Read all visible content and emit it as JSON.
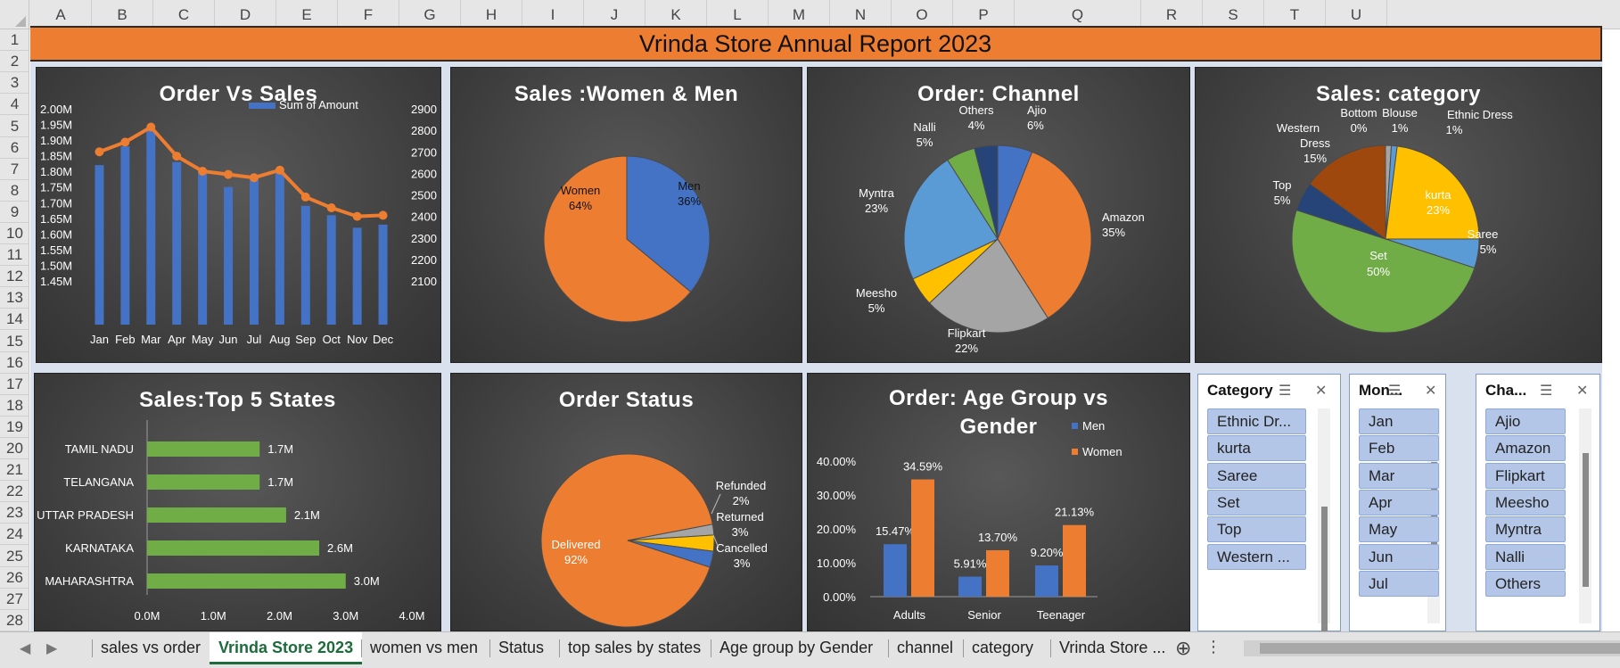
{
  "columns": [
    "A",
    "B",
    "C",
    "D",
    "E",
    "F",
    "G",
    "H",
    "I",
    "J",
    "K",
    "L",
    "M",
    "N",
    "O",
    "P",
    "Q",
    "R",
    "S",
    "T",
    "U"
  ],
  "rows": [
    "1",
    "2",
    "3",
    "4",
    "5",
    "6",
    "7",
    "8",
    "9",
    "10",
    "11",
    "12",
    "13",
    "14",
    "15",
    "16",
    "17",
    "18",
    "19",
    "20",
    "21",
    "22",
    "23",
    "24",
    "25",
    "26",
    "27",
    "28"
  ],
  "banner_title": "Vrinda Store Annual Report 2023",
  "colors": {
    "orange": "#ed7d31",
    "blue": "#4472c4",
    "green": "#70ad47",
    "gray": "#a5a5a5",
    "yellow": "#ffc000",
    "lightblue": "#5b9bd5",
    "navy": "#264478",
    "brown": "#9e480e"
  },
  "charts": {
    "order_vs_sales": {
      "title": "Order Vs Sales",
      "legend": "Sum of Amount",
      "left_ticks": [
        "2.00M",
        "1.95M",
        "1.90M",
        "1.85M",
        "1.80M",
        "1.75M",
        "1.70M",
        "1.65M",
        "1.60M",
        "1.55M",
        "1.50M",
        "1.45M"
      ],
      "right_ticks": [
        "2900",
        "2800",
        "2700",
        "2600",
        "2500",
        "2400",
        "2300",
        "2200",
        "2100"
      ]
    },
    "sales_gender": {
      "title": "Sales :Women & Men"
    },
    "order_channel": {
      "title": "Order: Channel"
    },
    "sales_category": {
      "title": "Sales: category"
    },
    "top_states": {
      "title": "Sales:Top 5 States",
      "x_ticks": [
        "0.0M",
        "1.0M",
        "2.0M",
        "3.0M",
        "4.0M"
      ]
    },
    "order_status": {
      "title": "Order Status"
    },
    "age_gender": {
      "title_line1": "Order: Age Group vs",
      "title_line2": "Gender",
      "y_ticks": [
        "40.00%",
        "30.00%",
        "20.00%",
        "10.00%",
        "0.00%"
      ]
    }
  },
  "chart_data": [
    {
      "type": "bar",
      "title": "Order Vs Sales",
      "categories": [
        "Jan",
        "Feb",
        "Mar",
        "Apr",
        "May",
        "Jun",
        "Jul",
        "Aug",
        "Sep",
        "Oct",
        "Nov",
        "Dec"
      ],
      "series": [
        {
          "name": "Sum of Amount",
          "type": "bar",
          "axis": "left",
          "values": [
            1.82,
            1.88,
            1.93,
            1.83,
            1.8,
            1.75,
            1.78,
            1.8,
            1.69,
            1.66,
            1.62,
            1.63
          ]
        },
        {
          "type": "line",
          "axis": "right",
          "values": [
            2700,
            2745,
            2815,
            2680,
            2610,
            2595,
            2580,
            2615,
            2490,
            2440,
            2400,
            2405
          ]
        }
      ],
      "ylim": [
        1.45,
        2.0
      ],
      "y2lim": [
        2100,
        2900
      ],
      "grid": false,
      "legend_position": "top-right"
    },
    {
      "type": "pie",
      "title": "Sales :Women & Men",
      "labels": [
        "Men",
        "Women"
      ],
      "values": [
        36,
        64
      ],
      "display": [
        "36%",
        "64%"
      ]
    },
    {
      "type": "pie",
      "title": "Order: Channel",
      "labels": [
        "Ajio",
        "Amazon",
        "Flipkart",
        "Meesho",
        "Myntra",
        "Nalli",
        "Others"
      ],
      "values": [
        6,
        35,
        22,
        5,
        23,
        5,
        4
      ],
      "display": [
        "6%",
        "35%",
        "22%",
        "5%",
        "23%",
        "5%",
        "4%"
      ]
    },
    {
      "type": "pie",
      "title": "Sales: category",
      "labels": [
        "Blouse",
        "Ethnic Dress",
        "kurta",
        "Saree",
        "Set",
        "Top",
        "Western Dress",
        "Bottom"
      ],
      "values": [
        1,
        1,
        23,
        5,
        50,
        5,
        15,
        0
      ],
      "display": [
        "1%",
        "1%",
        "23%",
        "5%",
        "50%",
        "5%",
        "15%",
        "0%"
      ]
    },
    {
      "type": "bar",
      "orientation": "horizontal",
      "title": "Sales:Top 5 States",
      "categories": [
        "TAMIL NADU",
        "TELANGANA",
        "UTTAR PRADESH",
        "KARNATAKA",
        "MAHARASHTRA"
      ],
      "values": [
        1.7,
        1.7,
        2.1,
        2.6,
        3.0
      ],
      "display": [
        "1.7M",
        "1.7M",
        "2.1M",
        "2.6M",
        "3.0M"
      ],
      "xlim": [
        0,
        4
      ]
    },
    {
      "type": "pie",
      "title": "Order Status",
      "labels": [
        "Delivered",
        "Refunded",
        "Returned",
        "Cancelled"
      ],
      "values": [
        92,
        2,
        3,
        3
      ],
      "display": [
        "92%",
        "2%",
        "3%",
        "3%"
      ]
    },
    {
      "type": "bar",
      "title": "Order: Age Group vs Gender",
      "categories": [
        "Adults",
        "Senior",
        "Teenager"
      ],
      "series": [
        {
          "name": "Men",
          "values": [
            15.47,
            5.91,
            9.2
          ],
          "display": [
            "15.47%",
            "5.91%",
            "9.20%"
          ]
        },
        {
          "name": "Women",
          "values": [
            34.59,
            13.7,
            21.13
          ],
          "display": [
            "34.59%",
            "13.70%",
            "21.13%"
          ]
        }
      ],
      "ylim": [
        0,
        40
      ],
      "legend_position": "top-right"
    }
  ],
  "slicers": [
    {
      "title": "Category",
      "items": [
        "Ethnic Dr...",
        "kurta",
        "Saree",
        "Set",
        "Top",
        "Western ..."
      ]
    },
    {
      "title": "Mon...",
      "items": [
        "Jan",
        "Feb",
        "Mar",
        "Apr",
        "May",
        "Jun",
        "Jul"
      ]
    },
    {
      "title": "Cha...",
      "items": [
        "Ajio",
        "Amazon",
        "Flipkart",
        "Meesho",
        "Myntra",
        "Nalli",
        "Others"
      ]
    }
  ],
  "slicer_icons": {
    "multi_select": "☰",
    "clear_filter": "✕"
  },
  "sheet_tabs": [
    "sales vs order",
    "Vrinda Store 2023",
    "women vs men",
    "Status",
    "top sales by states",
    "Age  group by Gender",
    "channel",
    "category",
    "Vrinda Store ..."
  ],
  "active_tab": "Vrinda Store 2023",
  "tab_nav": {
    "prev": "◀",
    "next": "▶",
    "add": "⊕",
    "more": "⋮"
  }
}
